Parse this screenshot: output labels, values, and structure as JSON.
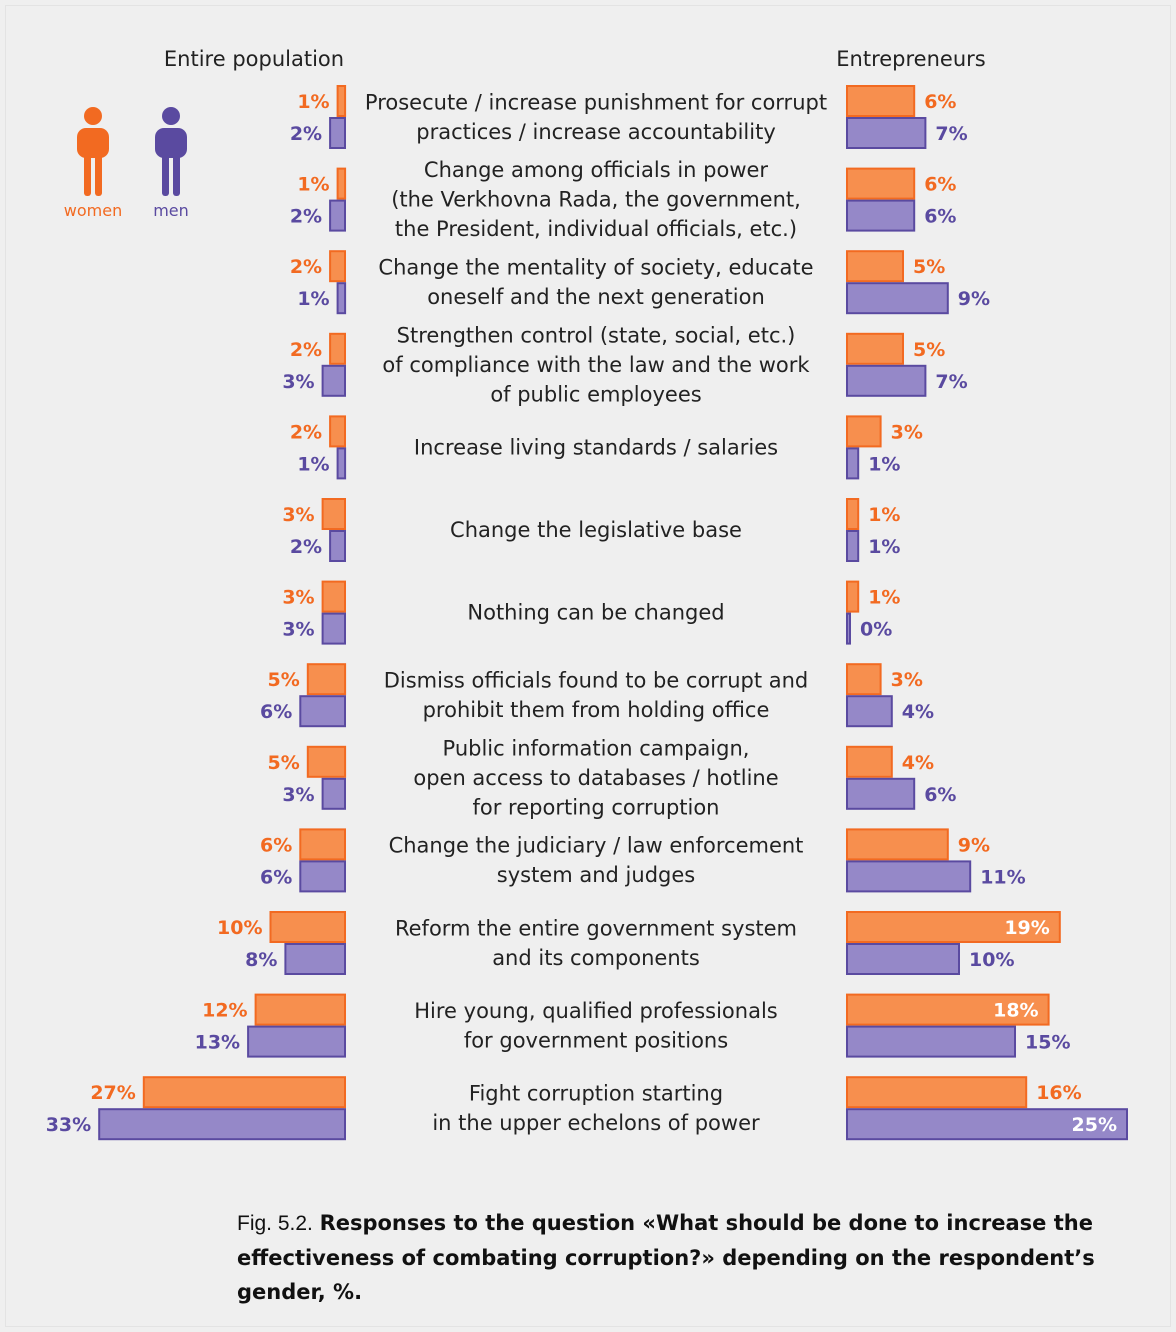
{
  "colors": {
    "women_fill": "#f78f4e",
    "women_stroke": "#f26a21",
    "men_fill": "#9588c8",
    "men_stroke": "#5a4aa0",
    "women_text": "#f26a21",
    "men_text": "#5a4aa0"
  },
  "legend": {
    "women_label": "women",
    "men_label": "men",
    "women_icon": "woman-figure-icon",
    "men_icon": "man-figure-icon"
  },
  "caption": {
    "prefix": "Fig. 5.2.",
    "bold": "Responses to the question «What should be done to increase the effectiveness of combating corruption?» depending on the respondent’s gender, %."
  },
  "chart_data": {
    "type": "bar",
    "orientation": "horizontal-butterfly",
    "value_suffix": "%",
    "panels": [
      {
        "id": "entire",
        "title": "Entire population",
        "direction": "left"
      },
      {
        "id": "entrepreneurs",
        "title": "Entrepreneurs",
        "direction": "right"
      }
    ],
    "categories": [
      [
        "Prosecute / increase punishment for corrupt",
        "practices / increase accountability"
      ],
      [
        "Change among officials in power",
        "(the Verkhovna Rada, the government,",
        "the President, individual officials, etc.)"
      ],
      [
        "Change the mentality of society, educate",
        "oneself and the next generation"
      ],
      [
        "Strengthen control (state, social, etc.)",
        "of compliance with the law and the work",
        "of public employees"
      ],
      [
        "Increase living standards / salaries"
      ],
      [
        "Change the legislative base"
      ],
      [
        "Nothing can be changed"
      ],
      [
        "Dismiss officials found to be corrupt and",
        "prohibit them from holding office"
      ],
      [
        "Public information campaign,",
        "open access to databases / hotline",
        "for reporting corruption"
      ],
      [
        "Change the judiciary / law enforcement",
        "system and judges"
      ],
      [
        "Reform the entire government system",
        "and its components"
      ],
      [
        "Hire young, qualified professionals",
        "for government positions"
      ],
      [
        "Fight corruption starting",
        "in the upper echelons of power"
      ]
    ],
    "series": [
      {
        "name": "women",
        "panel": "entire",
        "values": [
          1,
          1,
          2,
          2,
          2,
          3,
          3,
          5,
          5,
          6,
          10,
          12,
          27
        ]
      },
      {
        "name": "men",
        "panel": "entire",
        "values": [
          2,
          2,
          1,
          3,
          1,
          2,
          3,
          6,
          3,
          6,
          8,
          13,
          33
        ]
      },
      {
        "name": "women",
        "panel": "entrepreneurs",
        "values": [
          6,
          6,
          5,
          5,
          3,
          1,
          1,
          3,
          4,
          9,
          19,
          18,
          16
        ]
      },
      {
        "name": "men",
        "panel": "entrepreneurs",
        "values": [
          7,
          6,
          9,
          7,
          1,
          1,
          0,
          4,
          6,
          11,
          10,
          15,
          25
        ]
      }
    ]
  }
}
